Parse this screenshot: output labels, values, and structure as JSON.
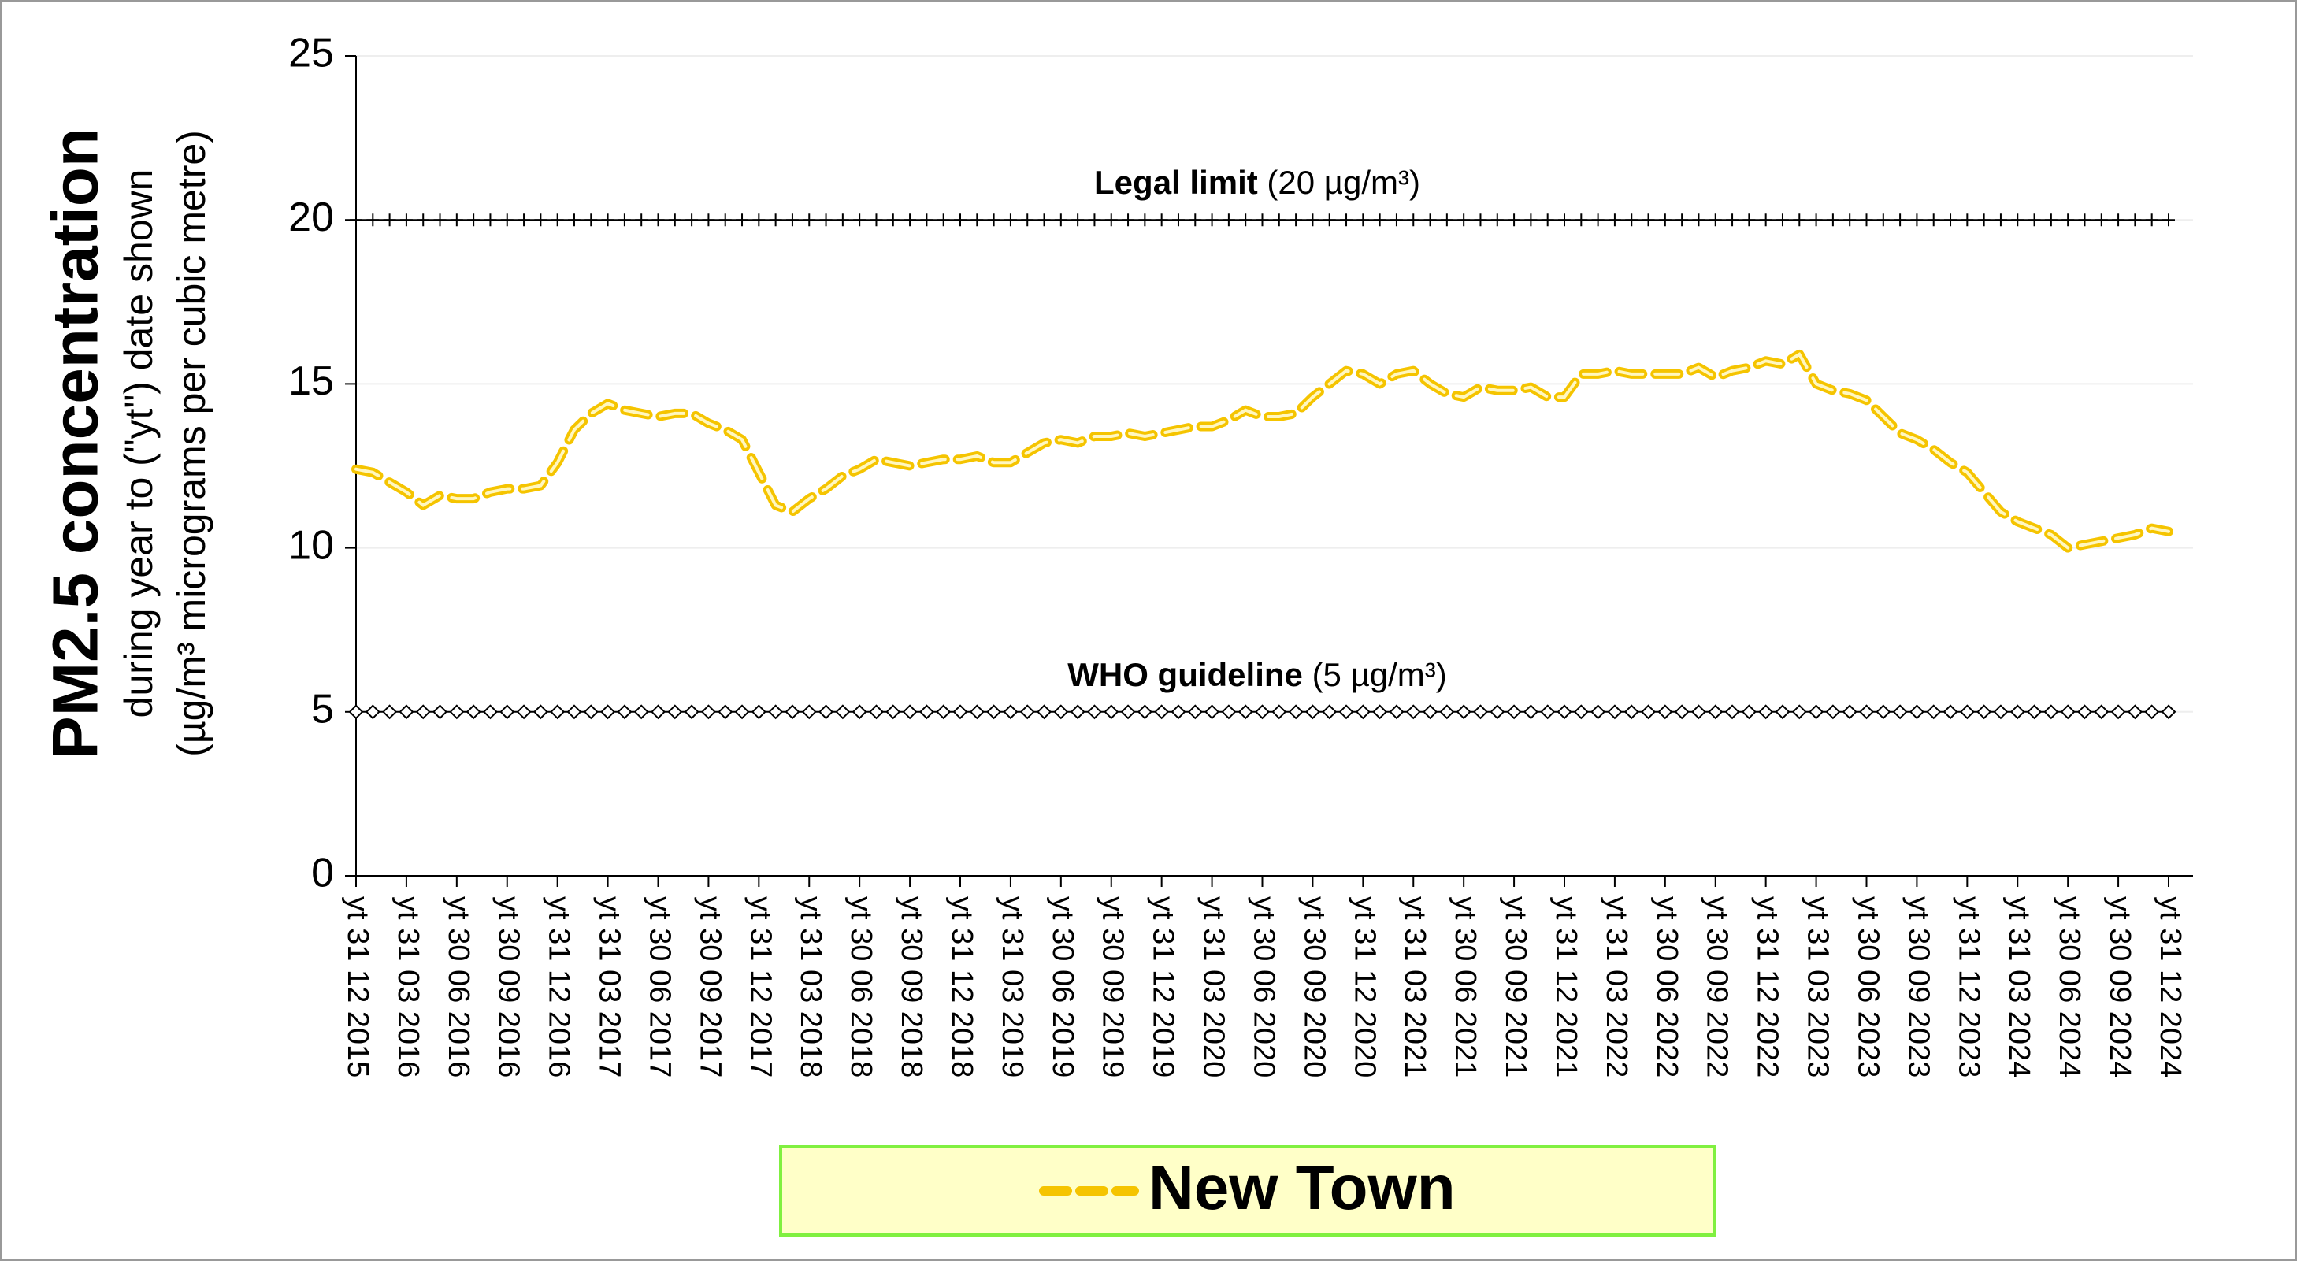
{
  "chart_data": {
    "type": "line",
    "y_title_main": "PM2.5 concentration",
    "y_title_line2": "during year to (\"yt\") date shown",
    "y_title_line3": "(µg/m³ micrograms per cubic metre)",
    "ylim": [
      0,
      25
    ],
    "yticks": [
      0,
      5,
      10,
      15,
      20,
      25
    ],
    "grid": true,
    "categories": [
      "yt 31 12 2015",
      null,
      null,
      "yt 31 03 2016",
      null,
      null,
      "yt 30 06 2016",
      null,
      null,
      "yt 30 09 2016",
      null,
      null,
      "yt 31 12 2016",
      null,
      null,
      "yt 31 03 2017",
      null,
      null,
      "yt 30 06 2017",
      null,
      null,
      "yt 30 09 2017",
      null,
      null,
      "yt 31 12 2017",
      null,
      null,
      "yt 31 03 2018",
      null,
      null,
      "yt 30 06 2018",
      null,
      null,
      "yt 30 09 2018",
      null,
      null,
      "yt 31 12 2018",
      null,
      null,
      "yt 31 03 2019",
      null,
      null,
      "yt 30 06 2019",
      null,
      null,
      "yt 30 09 2019",
      null,
      null,
      "yt 31 12 2019",
      null,
      null,
      "yt 31 03 2020",
      null,
      null,
      "yt 30 06 2020",
      null,
      null,
      "yt 30 09 2020",
      null,
      null,
      "yt 31 12 2020",
      null,
      null,
      "yt 31 03 2021",
      null,
      null,
      "yt 30 06 2021",
      null,
      null,
      "yt 30 09 2021",
      null,
      null,
      "yt 31 12 2021",
      null,
      null,
      "yt 31 03 2022",
      null,
      null,
      "yt 30 06 2022",
      null,
      null,
      "yt 30 09 2022",
      null,
      null,
      "yt 31 12 2022",
      null,
      null,
      "yt 31 03 2023",
      null,
      null,
      "yt 30 06 2023",
      null,
      null,
      "yt 30 09 2023",
      null,
      null,
      "yt 31 12 2023",
      null,
      null,
      "yt 31 03 2024",
      null,
      null,
      "yt 30 06 2024",
      null,
      null,
      "yt 30 09 2024",
      null,
      null,
      "yt 31 12 2024"
    ],
    "series": [
      {
        "name": "New Town",
        "color": "#f5c400",
        "values": [
          12.4,
          12.3,
          12.0,
          11.7,
          11.3,
          11.6,
          11.5,
          11.5,
          11.7,
          11.8,
          11.8,
          11.9,
          12.6,
          13.6,
          14.1,
          14.4,
          14.2,
          14.1,
          14.0,
          14.1,
          14.1,
          13.8,
          13.6,
          13.3,
          12.3,
          11.3,
          11.1,
          11.5,
          11.8,
          12.2,
          12.4,
          12.7,
          12.6,
          12.5,
          12.6,
          12.7,
          12.7,
          12.8,
          12.6,
          12.6,
          12.9,
          13.2,
          13.3,
          13.2,
          13.4,
          13.4,
          13.5,
          13.4,
          13.5,
          13.6,
          13.7,
          13.7,
          13.9,
          14.2,
          14.0,
          14.0,
          14.1,
          14.6,
          15.0,
          15.4,
          15.3,
          15.0,
          15.3,
          15.4,
          15.0,
          14.7,
          14.6,
          14.9,
          14.8,
          14.8,
          14.9,
          14.6,
          14.6,
          15.3,
          15.3,
          15.4,
          15.3,
          15.3,
          15.3,
          15.3,
          15.5,
          15.2,
          15.4,
          15.5,
          15.7,
          15.6,
          15.9,
          15.0,
          14.8,
          14.7,
          14.5,
          14.0,
          13.5,
          13.3,
          13.0,
          12.6,
          12.3,
          11.7,
          11.1,
          10.8,
          10.6,
          10.4,
          10.0,
          10.1,
          10.2,
          10.3,
          10.4,
          10.6,
          10.5
        ]
      }
    ],
    "reference_lines": [
      {
        "value": 20,
        "label_bold": "Legal limit",
        "label_rest": "(20 µg/m³)",
        "marker": "plus"
      },
      {
        "value": 5,
        "label_bold": "WHO guideline",
        "label_rest": "(5 µg/m³)",
        "marker": "diamond"
      }
    ],
    "legend": {
      "fill": "#ffffc8",
      "border": "#80f040"
    },
    "title_color": "#1db954"
  }
}
